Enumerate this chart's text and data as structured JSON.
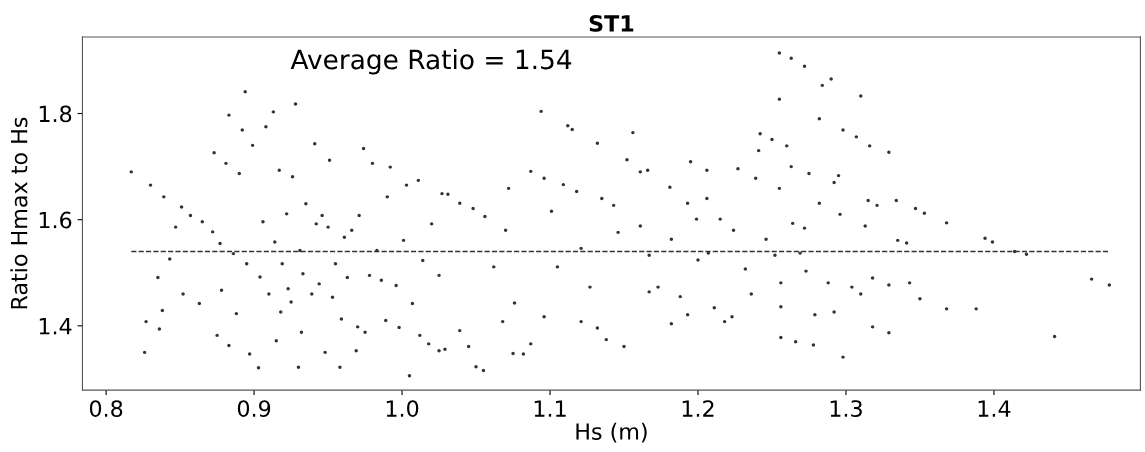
{
  "chart_data": {
    "type": "scatter",
    "title": "ST1",
    "xlabel": "Hs (m)",
    "ylabel": "Ratio Hmax to Hs",
    "annotations": [
      "Average Ratio = 1.54"
    ],
    "xlim": [
      0.784,
      1.499
    ],
    "ylim": [
      1.279,
      1.944
    ],
    "xticks": [
      0.8,
      0.9,
      {
        "value": 1.0,
        "label": "1.0"
      },
      1.1,
      1.2,
      1.3,
      1.4
    ],
    "yticks": [
      1.4,
      1.6,
      1.8
    ],
    "grid": false,
    "marker": "circle",
    "ref_lines": [
      {
        "axis": "y",
        "value": 1.54,
        "label": null,
        "color": "#333333",
        "line_style": "dashed"
      }
    ],
    "series": [
      {
        "color": "#333333",
        "x": [
          0.817,
          0.826,
          0.827,
          0.83,
          0.836,
          0.835,
          0.838,
          0.839,
          0.843,
          0.847,
          0.851,
          0.852,
          0.857,
          0.863,
          0.865,
          0.872,
          0.873,
          0.875,
          0.877,
          0.878,
          0.881,
          0.883,
          0.883,
          0.886,
          0.888,
          0.89,
          0.892,
          0.894,
          0.895,
          0.897,
          0.899,
          0.903,
          0.904,
          0.906,
          0.908,
          0.91,
          0.913,
          0.914,
          0.915,
          0.917,
          0.918,
          0.919,
          0.922,
          0.923,
          0.925,
          0.926,
          0.928,
          0.93,
          0.931,
          0.932,
          0.933,
          0.935,
          0.939,
          0.941,
          0.942,
          0.944,
          0.946,
          0.948,
          0.95,
          0.951,
          0.953,
          0.955,
          0.958,
          0.959,
          0.961,
          0.963,
          0.966,
          0.969,
          0.97,
          0.971,
          0.974,
          0.975,
          0.978,
          0.98,
          0.983,
          0.986,
          0.989,
          0.99,
          0.992,
          0.996,
          0.998,
          1.001,
          1.003,
          1.005,
          1.007,
          1.011,
          1.012,
          1.014,
          1.018,
          1.02,
          1.025,
          1.027,
          1.029,
          1.025,
          1.031,
          1.039,
          1.039,
          1.045,
          1.05,
          1.055,
          1.048,
          1.056,
          1.062,
          1.068,
          1.07,
          1.072,
          1.075,
          1.076,
          1.082,
          1.087,
          1.087,
          1.094,
          1.096,
          1.096,
          1.101,
          1.105,
          1.109,
          1.112,
          1.115,
          1.118,
          1.121,
          1.121,
          1.127,
          1.132,
          1.132,
          1.135,
          1.138,
          1.143,
          1.146,
          1.15,
          1.152,
          1.156,
          1.161,
          1.166,
          1.161,
          1.167,
          1.167,
          1.173,
          1.181,
          1.182,
          1.182,
          1.188,
          1.193,
          1.193,
          1.195,
          1.199,
          1.2,
          1.206,
          1.206,
          1.207,
          1.211,
          1.215,
          1.218,
          1.223,
          1.224,
          1.227,
          1.232,
          1.236,
          1.239,
          1.241,
          1.242,
          1.246,
          1.25,
          1.252,
          1.255,
          1.255,
          1.255,
          1.256,
          1.256,
          1.256,
          1.26,
          1.263,
          1.263,
          1.264,
          1.266,
          1.269,
          1.272,
          1.272,
          1.273,
          1.275,
          1.278,
          1.279,
          1.282,
          1.282,
          1.284,
          1.288,
          1.29,
          1.292,
          1.292,
          1.295,
          1.296,
          1.298,
          1.298,
          1.304,
          1.307,
          1.31,
          1.31,
          1.313,
          1.315,
          1.316,
          1.318,
          1.318,
          1.321,
          1.329,
          1.329,
          1.329,
          1.334,
          1.335,
          1.341,
          1.343,
          1.347,
          1.35,
          1.353,
          1.368,
          1.368,
          1.388,
          1.394,
          1.399,
          1.414,
          1.422,
          1.441,
          1.466,
          1.478
        ],
        "values": [
          1.69,
          1.35,
          1.408,
          1.665,
          1.394,
          1.491,
          1.429,
          1.643,
          1.526,
          1.586,
          1.624,
          1.46,
          1.608,
          1.442,
          1.596,
          1.577,
          1.726,
          1.382,
          1.555,
          1.467,
          1.706,
          1.363,
          1.797,
          1.536,
          1.423,
          1.687,
          1.769,
          1.841,
          1.517,
          1.347,
          1.74,
          1.321,
          1.492,
          1.596,
          1.775,
          1.46,
          1.803,
          1.558,
          1.372,
          1.693,
          1.426,
          1.517,
          1.611,
          1.47,
          1.445,
          1.681,
          1.818,
          1.322,
          1.542,
          1.388,
          1.498,
          1.63,
          1.46,
          1.743,
          1.592,
          1.479,
          1.608,
          1.35,
          1.586,
          1.712,
          1.454,
          1.517,
          1.322,
          1.413,
          1.567,
          1.491,
          1.58,
          1.353,
          1.398,
          1.608,
          1.734,
          1.388,
          1.495,
          1.706,
          1.542,
          1.486,
          1.41,
          1.643,
          1.699,
          1.476,
          1.397,
          1.561,
          1.665,
          1.306,
          1.442,
          1.674,
          1.382,
          1.523,
          1.366,
          1.592,
          1.495,
          1.649,
          1.356,
          1.353,
          1.648,
          1.631,
          1.391,
          1.361,
          1.323,
          1.316,
          1.621,
          1.606,
          1.511,
          1.408,
          1.58,
          1.659,
          1.348,
          1.443,
          1.347,
          1.366,
          1.691,
          1.804,
          1.417,
          1.678,
          1.616,
          1.511,
          1.666,
          1.777,
          1.77,
          1.653,
          1.546,
          1.408,
          1.473,
          1.744,
          1.396,
          1.64,
          1.374,
          1.627,
          1.576,
          1.361,
          1.713,
          1.764,
          1.69,
          1.693,
          1.588,
          1.533,
          1.464,
          1.473,
          1.661,
          1.563,
          1.404,
          1.455,
          1.631,
          1.421,
          1.709,
          1.601,
          1.524,
          1.64,
          1.693,
          1.537,
          1.434,
          1.601,
          1.408,
          1.417,
          1.58,
          1.696,
          1.507,
          1.46,
          1.678,
          1.73,
          1.762,
          1.563,
          1.751,
          1.533,
          1.914,
          1.827,
          1.659,
          1.481,
          1.436,
          1.378,
          1.739,
          1.904,
          1.7,
          1.593,
          1.37,
          1.537,
          1.889,
          1.584,
          1.503,
          1.687,
          1.364,
          1.421,
          1.79,
          1.631,
          1.853,
          1.481,
          1.865,
          1.67,
          1.426,
          1.683,
          1.61,
          1.769,
          1.341,
          1.473,
          1.756,
          1.833,
          1.46,
          1.588,
          1.636,
          1.739,
          1.49,
          1.398,
          1.627,
          1.727,
          1.387,
          1.477,
          1.636,
          1.561,
          1.556,
          1.481,
          1.621,
          1.451,
          1.612,
          1.432,
          1.594,
          1.432,
          1.565,
          1.558,
          1.54,
          1.535,
          1.38,
          1.488,
          1.477
        ]
      }
    ]
  }
}
